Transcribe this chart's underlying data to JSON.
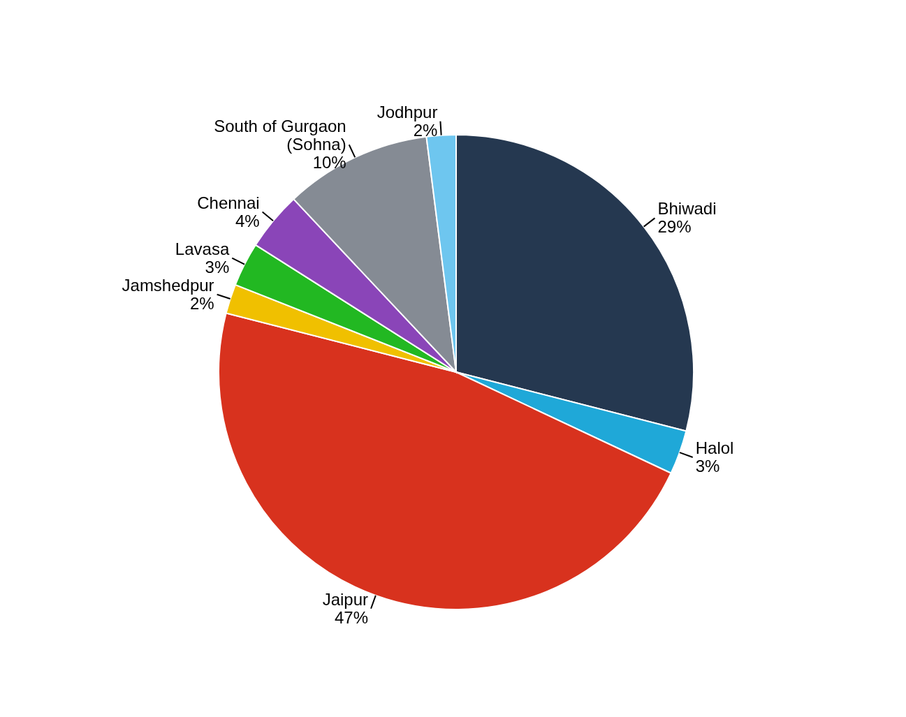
{
  "chart_data": {
    "type": "pie",
    "categories": [
      "Bhiwadi",
      "Halol",
      "Jaipur",
      "Jamshedpur",
      "Lavasa",
      "Chennai",
      "South of Gurgaon (Sohna)",
      "Jodhpur"
    ],
    "values": [
      29,
      3,
      47,
      2,
      3,
      4,
      10,
      2
    ],
    "value_labels": [
      "29%",
      "3%",
      "47%",
      "2%",
      "3%",
      "4%",
      "10%",
      "2%"
    ],
    "colors": [
      "#253850",
      "#1fa8d8",
      "#d8321e",
      "#f0c000",
      "#22b822",
      "#8a45b8",
      "#858b94",
      "#6ec6ef"
    ]
  }
}
